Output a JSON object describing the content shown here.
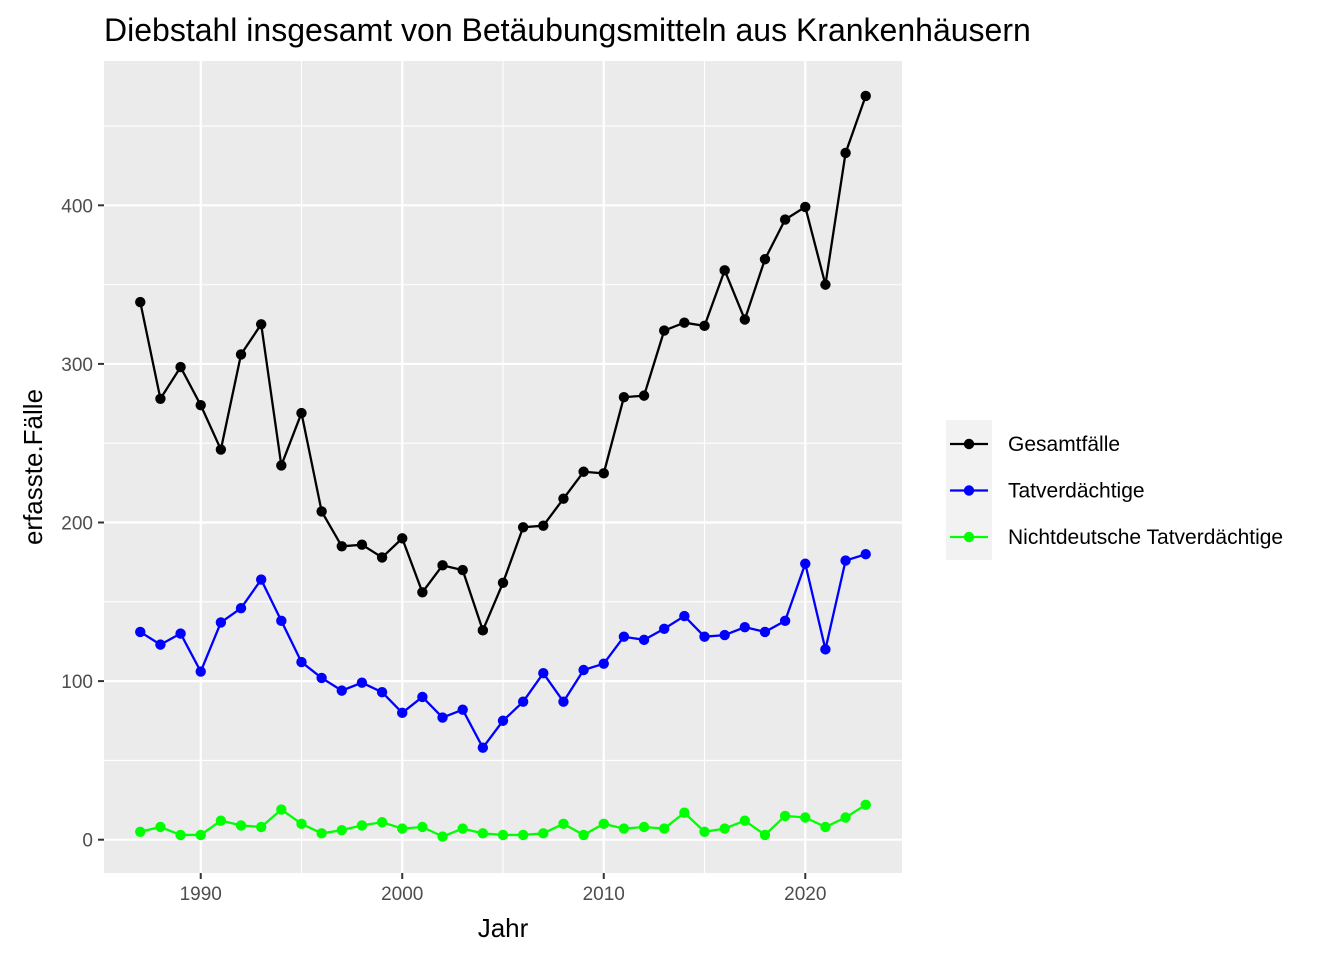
{
  "chart_data": {
    "type": "line",
    "title": "Diebstahl insgesamt von Betäubungsmitteln aus Krankenhäusern",
    "xlabel": "Jahr",
    "ylabel": "erfasste.Fälle",
    "xlim": [
      1985.2,
      2024.8
    ],
    "ylim": [
      -21,
      491
    ],
    "x_ticks": [
      1990,
      2000,
      2010,
      2020
    ],
    "y_ticks": [
      0,
      100,
      200,
      300,
      400
    ],
    "x_tick_labels": [
      "1990",
      "2000",
      "2010",
      "2020"
    ],
    "y_tick_labels": [
      "0",
      "100",
      "200",
      "300",
      "400"
    ],
    "grid": true,
    "panel_background": "#ebebeb",
    "grid_color": "#ffffff",
    "legend_position": "right",
    "x": [
      1987,
      1988,
      1989,
      1990,
      1991,
      1992,
      1993,
      1994,
      1995,
      1996,
      1997,
      1998,
      1999,
      2000,
      2001,
      2002,
      2003,
      2004,
      2005,
      2006,
      2007,
      2008,
      2009,
      2010,
      2011,
      2012,
      2013,
      2014,
      2015,
      2016,
      2017,
      2018,
      2019,
      2020,
      2021,
      2022,
      2023
    ],
    "series": [
      {
        "name": "Gesamtfälle",
        "color": "#000000",
        "values": [
          339,
          278,
          298,
          274,
          246,
          306,
          325,
          236,
          269,
          207,
          185,
          186,
          178,
          190,
          156,
          173,
          170,
          132,
          162,
          197,
          198,
          215,
          232,
          231,
          279,
          280,
          321,
          326,
          324,
          359,
          328,
          366,
          391,
          399,
          350,
          433,
          469
        ]
      },
      {
        "name": "Tatverdächtige",
        "color": "#0000ff",
        "values": [
          131,
          123,
          130,
          106,
          137,
          146,
          164,
          138,
          112,
          102,
          94,
          99,
          93,
          80,
          90,
          77,
          82,
          58,
          75,
          87,
          105,
          87,
          107,
          111,
          128,
          126,
          133,
          141,
          128,
          129,
          134,
          131,
          138,
          174,
          120,
          176,
          180
        ]
      },
      {
        "name": "Nichtdeutsche Tatverdächtige",
        "color": "#00ff00",
        "values": [
          5,
          8,
          3,
          3,
          12,
          9,
          8,
          19,
          10,
          4,
          6,
          9,
          11,
          7,
          8,
          2,
          7,
          4,
          3,
          3,
          4,
          10,
          3,
          10,
          7,
          8,
          7,
          17,
          5,
          7,
          12,
          3,
          15,
          14,
          8,
          14,
          22
        ]
      }
    ]
  }
}
